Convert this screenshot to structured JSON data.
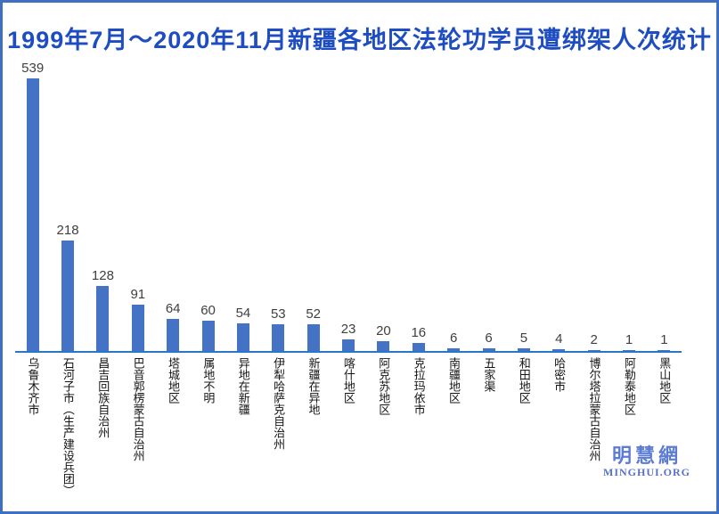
{
  "title": "1999年7月～2020年11月新疆各地区法轮功学员遭绑架人次统计",
  "watermark": {
    "cn": "明慧網",
    "en": "MINGHUI.ORG"
  },
  "colors": {
    "background": "#FFFFFF",
    "border": "#3E6FC1",
    "title": "#1D4DC0",
    "bar": "#4472C4",
    "axis": "#2778C8",
    "value_label": "#404040",
    "category_label": "#141414",
    "watermark_cn": "#5C7CD3",
    "watermark_en": "#5671CB"
  },
  "chart_data": {
    "type": "bar",
    "title": "1999年7月～2020年11月新疆各地区法轮功学员遭绑架人次统计",
    "categories": [
      "乌鲁木齐市",
      "石河子市（生产建设兵团）",
      "昌吉回族自治州",
      "巴音郭楞蒙古自治州",
      "塔城地区",
      "属地不明",
      "异地在新疆",
      "伊犁哈萨克自治州",
      "新疆在异地",
      "喀什地区",
      "阿克苏地区",
      "克拉玛依市",
      "南疆地区",
      "五家渠",
      "和田地区",
      "哈密市",
      "博尔塔拉蒙古自治州",
      "阿勒泰地区",
      "黑山地区"
    ],
    "values": [
      539,
      218,
      128,
      91,
      64,
      60,
      54,
      53,
      52,
      23,
      20,
      16,
      6,
      6,
      5,
      4,
      2,
      1,
      1
    ],
    "xlabel": "",
    "ylabel": "",
    "ylim": [
      0,
      539
    ],
    "grid": false,
    "legend": false,
    "y_axis_shown": false,
    "value_labels_shown": true,
    "category_label_orientation": "vertical-text",
    "bar_color": "#4472C4"
  }
}
